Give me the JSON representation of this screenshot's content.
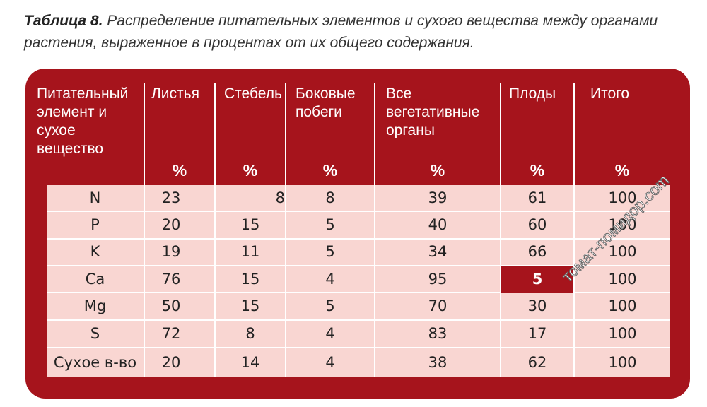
{
  "caption": {
    "label": "Таблица 8.",
    "text": "Распределение питательных элементов и сухого вещества между органами растения, выраженное в процентах от их общего содержания."
  },
  "table": {
    "columns": [
      {
        "header": "Питательный элемент и сухое вещество",
        "unit": ""
      },
      {
        "header": "Листья",
        "unit": "%"
      },
      {
        "header": "Стебель",
        "unit": "%"
      },
      {
        "header": "Боковые побеги",
        "unit": "%"
      },
      {
        "header": "Все вегетативные органы",
        "unit": "%"
      },
      {
        "header": "Плоды",
        "unit": "%"
      },
      {
        "header": "Итого",
        "unit": "%"
      }
    ],
    "rows": [
      [
        "N",
        "23",
        "8",
        "8",
        "39",
        "61",
        "100"
      ],
      [
        "P",
        "20",
        "15",
        "5",
        "40",
        "60",
        "100"
      ],
      [
        "K",
        "19",
        "11",
        "5",
        "34",
        "66",
        "100"
      ],
      [
        "Ca",
        "76",
        "15",
        "4",
        "95",
        "5",
        "100"
      ],
      [
        "Mg",
        "50",
        "15",
        "5",
        "70",
        "30",
        "100"
      ],
      [
        "S",
        "72",
        "8",
        "4",
        "83",
        "17",
        "100"
      ],
      [
        "Сухое в-во",
        "20",
        "14",
        "4",
        "38",
        "62",
        "100"
      ]
    ],
    "highlight": {
      "row": 3,
      "col": 5,
      "color": "#a6141c"
    }
  },
  "colors": {
    "panel": "#a6141c",
    "body": "#f9d6d2"
  },
  "watermark": "томат-помидор.com"
}
